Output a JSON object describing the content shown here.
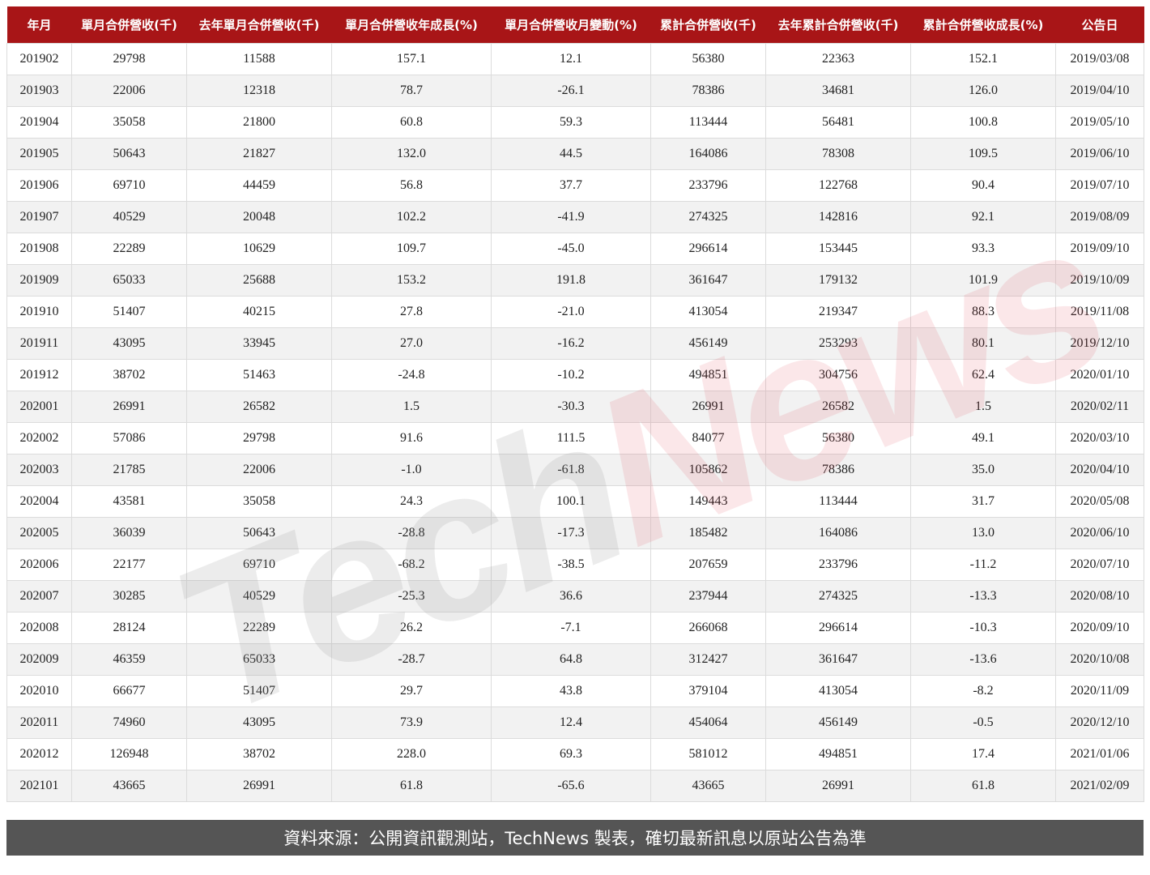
{
  "table": {
    "headers": [
      "年月",
      "單月合併營收(千)",
      "去年單月合併營收(千)",
      "單月合併營收年成長(%)",
      "單月合併營收月變動(%)",
      "累計合併營收(千)",
      "去年累計合併營收(千)",
      "累計合併營收成長(%)",
      "公告日"
    ],
    "rows": [
      [
        "201902",
        "29798",
        "11588",
        "157.1",
        "12.1",
        "56380",
        "22363",
        "152.1",
        "2019/03/08"
      ],
      [
        "201903",
        "22006",
        "12318",
        "78.7",
        "-26.1",
        "78386",
        "34681",
        "126.0",
        "2019/04/10"
      ],
      [
        "201904",
        "35058",
        "21800",
        "60.8",
        "59.3",
        "113444",
        "56481",
        "100.8",
        "2019/05/10"
      ],
      [
        "201905",
        "50643",
        "21827",
        "132.0",
        "44.5",
        "164086",
        "78308",
        "109.5",
        "2019/06/10"
      ],
      [
        "201906",
        "69710",
        "44459",
        "56.8",
        "37.7",
        "233796",
        "122768",
        "90.4",
        "2019/07/10"
      ],
      [
        "201907",
        "40529",
        "20048",
        "102.2",
        "-41.9",
        "274325",
        "142816",
        "92.1",
        "2019/08/09"
      ],
      [
        "201908",
        "22289",
        "10629",
        "109.7",
        "-45.0",
        "296614",
        "153445",
        "93.3",
        "2019/09/10"
      ],
      [
        "201909",
        "65033",
        "25688",
        "153.2",
        "191.8",
        "361647",
        "179132",
        "101.9",
        "2019/10/09"
      ],
      [
        "201910",
        "51407",
        "40215",
        "27.8",
        "-21.0",
        "413054",
        "219347",
        "88.3",
        "2019/11/08"
      ],
      [
        "201911",
        "43095",
        "33945",
        "27.0",
        "-16.2",
        "456149",
        "253293",
        "80.1",
        "2019/12/10"
      ],
      [
        "201912",
        "38702",
        "51463",
        "-24.8",
        "-10.2",
        "494851",
        "304756",
        "62.4",
        "2020/01/10"
      ],
      [
        "202001",
        "26991",
        "26582",
        "1.5",
        "-30.3",
        "26991",
        "26582",
        "1.5",
        "2020/02/11"
      ],
      [
        "202002",
        "57086",
        "29798",
        "91.6",
        "111.5",
        "84077",
        "56380",
        "49.1",
        "2020/03/10"
      ],
      [
        "202003",
        "21785",
        "22006",
        "-1.0",
        "-61.8",
        "105862",
        "78386",
        "35.0",
        "2020/04/10"
      ],
      [
        "202004",
        "43581",
        "35058",
        "24.3",
        "100.1",
        "149443",
        "113444",
        "31.7",
        "2020/05/08"
      ],
      [
        "202005",
        "36039",
        "50643",
        "-28.8",
        "-17.3",
        "185482",
        "164086",
        "13.0",
        "2020/06/10"
      ],
      [
        "202006",
        "22177",
        "69710",
        "-68.2",
        "-38.5",
        "207659",
        "233796",
        "-11.2",
        "2020/07/10"
      ],
      [
        "202007",
        "30285",
        "40529",
        "-25.3",
        "36.6",
        "237944",
        "274325",
        "-13.3",
        "2020/08/10"
      ],
      [
        "202008",
        "28124",
        "22289",
        "26.2",
        "-7.1",
        "266068",
        "296614",
        "-10.3",
        "2020/09/10"
      ],
      [
        "202009",
        "46359",
        "65033",
        "-28.7",
        "64.8",
        "312427",
        "361647",
        "-13.6",
        "2020/10/08"
      ],
      [
        "202010",
        "66677",
        "51407",
        "29.7",
        "43.8",
        "379104",
        "413054",
        "-8.2",
        "2020/11/09"
      ],
      [
        "202011",
        "74960",
        "43095",
        "73.9",
        "12.4",
        "454064",
        "456149",
        "-0.5",
        "2020/12/10"
      ],
      [
        "202012",
        "126948",
        "38702",
        "228.0",
        "69.3",
        "581012",
        "494851",
        "17.4",
        "2021/01/06"
      ],
      [
        "202101",
        "43665",
        "26991",
        "61.8",
        "-65.6",
        "43665",
        "26991",
        "61.8",
        "2021/02/09"
      ]
    ]
  },
  "watermark": {
    "part1": "Tech",
    "part2": "News"
  },
  "footer": {
    "text": "資料來源：公開資訊觀測站，TechNews 製表，確切最新訊息以原站公告為準"
  },
  "colors": {
    "header_bg": "#a81517",
    "footer_bg": "#555555"
  }
}
